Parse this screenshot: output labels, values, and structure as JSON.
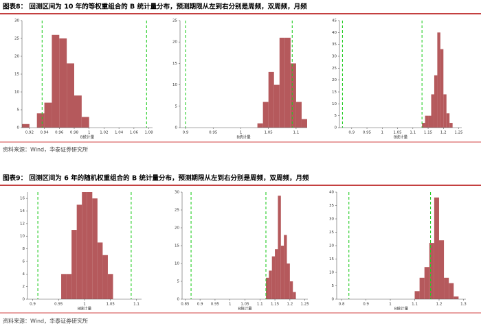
{
  "figures": [
    {
      "title": "图表8：  回测区间为 10 年的等权重组合的 B 统计量分布，预测期限从左到右分别是周频，双周频，月频",
      "source": "资料来源：Wind，华泰证券研究所",
      "charts": [
        {
          "type": "histogram",
          "xlabel": "B统计量",
          "color": "#b5595c",
          "line_color": "#22cc22",
          "bins": [
            0.91,
            0.92,
            0.93,
            0.94,
            0.95,
            0.96,
            0.97,
            0.98,
            0.99,
            1.0
          ],
          "counts": [
            1,
            0,
            4,
            7,
            26,
            25,
            18,
            9,
            3
          ],
          "vlines": [
            0.937,
            1.077
          ],
          "xlim": [
            0.91,
            1.085
          ],
          "xticks": [
            0.92,
            0.94,
            0.96,
            0.98,
            1,
            1.02,
            1.04,
            1.06,
            1.08
          ],
          "ylim": [
            0,
            30
          ],
          "yticks": [
            0,
            5,
            10,
            15,
            20,
            25,
            30
          ]
        },
        {
          "type": "histogram",
          "xlabel": "B统计量",
          "color": "#b5595c",
          "line_color": "#22cc22",
          "bins": [
            1.03,
            1.04,
            1.05,
            1.06,
            1.07,
            1.08,
            1.09,
            1.1,
            1.11,
            1.12
          ],
          "counts": [
            1,
            6,
            13,
            10,
            21,
            21,
            15,
            6,
            2
          ],
          "vlines": [
            0.9,
            1.093
          ],
          "xlim": [
            0.89,
            1.12
          ],
          "xticks": [
            0.9,
            0.95,
            1,
            1.05,
            1.1
          ],
          "ylim": [
            0,
            25
          ],
          "yticks": [
            0,
            5,
            10,
            15,
            20,
            25
          ]
        },
        {
          "type": "histogram",
          "xlabel": "B统计量",
          "color": "#b5595c",
          "line_color": "#22cc22",
          "bins": [
            1.13,
            1.14,
            1.15,
            1.16,
            1.17,
            1.18,
            1.19,
            1.2,
            1.21,
            1.22,
            1.23
          ],
          "counts": [
            2,
            5,
            5,
            14,
            22,
            40,
            33,
            14,
            6,
            2
          ],
          "vlines": [
            0.87,
            1.13
          ],
          "xlim": [
            0.86,
            1.26
          ],
          "xticks": [
            0.9,
            0.95,
            1,
            1.05,
            1.1,
            1.15,
            1.2,
            1.25
          ],
          "ylim": [
            0,
            45
          ],
          "yticks": [
            0,
            5,
            10,
            15,
            20,
            25,
            30,
            35,
            40,
            45
          ]
        }
      ]
    },
    {
      "title": "图表9：  回测区间为 6 年的随机权重组合的 B 统计量分布，预测期限从左到右分别是周频，双周频，月频",
      "source": "资料来源：Wind，华泰证券研究所",
      "charts": [
        {
          "type": "histogram",
          "xlabel": "B统计量",
          "color": "#b5595c",
          "line_color": "#22cc22",
          "bins": [
            0.955,
            0.965,
            0.975,
            0.985,
            0.995,
            1.005,
            1.015,
            1.025,
            1.035,
            1.045,
            1.055
          ],
          "counts": [
            4,
            4,
            11,
            15,
            17,
            17,
            16,
            9,
            7,
            4
          ],
          "vlines": [
            0.91,
            1.09
          ],
          "xlim": [
            0.89,
            1.11
          ],
          "xticks": [
            0.9,
            0.95,
            1,
            1.05,
            1.1
          ],
          "ylim": [
            0,
            17
          ],
          "yticks": [
            0,
            2,
            4,
            6,
            8,
            10,
            12,
            14,
            16
          ]
        },
        {
          "type": "histogram",
          "xlabel": "B统计量",
          "color": "#b5595c",
          "line_color": "#22cc22",
          "bins": [
            1.12,
            1.13,
            1.14,
            1.15,
            1.16,
            1.17,
            1.18,
            1.19,
            1.2,
            1.21,
            1.22
          ],
          "counts": [
            6,
            8,
            12,
            14,
            29,
            15,
            18,
            10,
            5,
            2
          ],
          "vlines": [
            0.87,
            1.12
          ],
          "xlim": [
            0.84,
            1.26
          ],
          "xticks": [
            0.85,
            0.9,
            0.95,
            1,
            1.05,
            1.1,
            1.15,
            1.2,
            1.25
          ],
          "ylim": [
            0,
            30
          ],
          "yticks": [
            0,
            5,
            10,
            15,
            20,
            25,
            30
          ]
        },
        {
          "type": "histogram",
          "xlabel": "B统计量",
          "color": "#b5595c",
          "line_color": "#22cc22",
          "bins": [
            1.1,
            1.12,
            1.14,
            1.16,
            1.18,
            1.2,
            1.22,
            1.24,
            1.26,
            1.28
          ],
          "counts": [
            3,
            8,
            12,
            21,
            38,
            22,
            8,
            6,
            1
          ],
          "vlines": [
            0.83,
            1.165
          ],
          "xlim": [
            0.78,
            1.31
          ],
          "xticks": [
            0.8,
            0.9,
            1,
            1.1,
            1.2,
            1.3
          ],
          "ylim": [
            0,
            40
          ],
          "yticks": [
            0,
            5,
            10,
            15,
            20,
            25,
            30,
            35,
            40
          ]
        }
      ]
    }
  ]
}
